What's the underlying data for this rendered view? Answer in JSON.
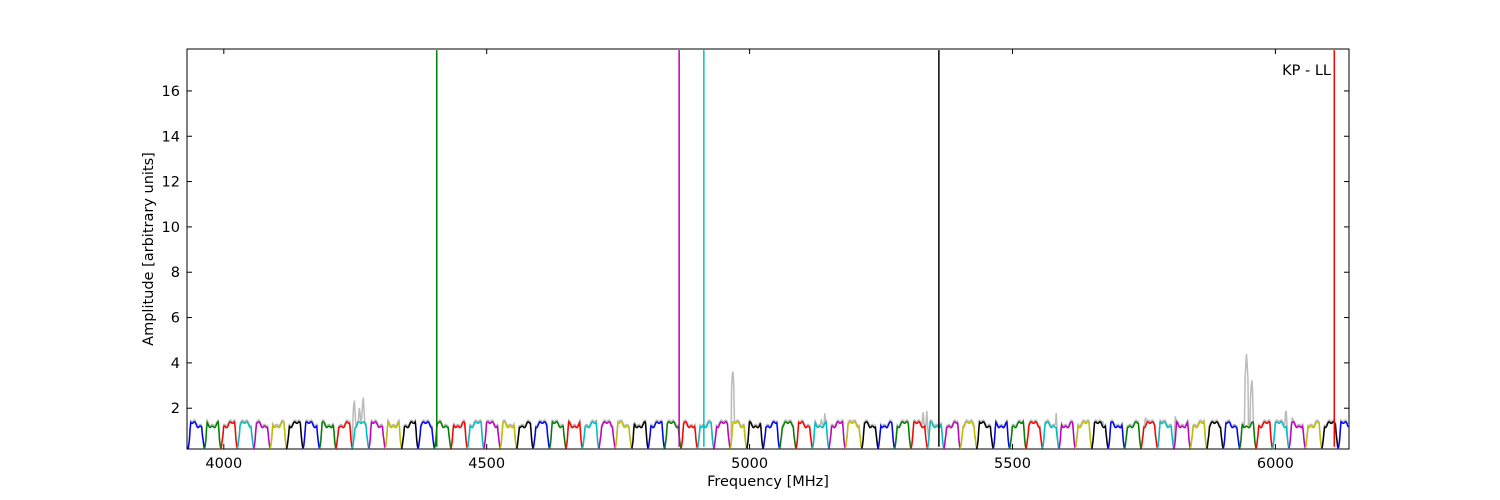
{
  "chart_data": {
    "type": "line",
    "annotation": "KP - LL",
    "xlabel": "Frequency [MHz]",
    "ylabel": "Amplitude [arbitrary units]",
    "xlim": [
      3930,
      6140
    ],
    "ylim": [
      0.2,
      17.85
    ],
    "x_ticks": [
      4000,
      4500,
      5000,
      5500,
      6000
    ],
    "y_ticks": [
      2,
      4,
      6,
      8,
      10,
      12,
      14,
      16
    ],
    "grid": false,
    "legend": "none",
    "channel_width_mhz": 31.25,
    "channel_start_mhz": 3932,
    "channel_colors": [
      "#0000ff",
      "#008000",
      "#ff0000",
      "#00bfbf",
      "#bf00bf",
      "#bfbf00",
      "#000000"
    ],
    "background_series_color": "#bbbbbb",
    "background_peaks": [
      {
        "x": 4248,
        "y": 2.5
      },
      {
        "x": 4258,
        "y": 2.2
      },
      {
        "x": 4265,
        "y": 2.6
      },
      {
        "x": 4968,
        "y": 3.8
      },
      {
        "x": 5137,
        "y": 1.7
      },
      {
        "x": 5143,
        "y": 1.8
      },
      {
        "x": 5330,
        "y": 2.0
      },
      {
        "x": 5337,
        "y": 1.9
      },
      {
        "x": 5583,
        "y": 1.8
      },
      {
        "x": 5672,
        "y": 1.6
      },
      {
        "x": 5753,
        "y": 1.8
      },
      {
        "x": 5810,
        "y": 1.8
      },
      {
        "x": 5945,
        "y": 4.4
      },
      {
        "x": 5955,
        "y": 3.4
      },
      {
        "x": 6020,
        "y": 2.1
      },
      {
        "x": 6032,
        "y": 1.7
      }
    ],
    "spikes": [
      {
        "x": 4405,
        "y": 17.8,
        "color": "#008000"
      },
      {
        "x": 4866,
        "y": 17.8,
        "color": "#bf00bf"
      },
      {
        "x": 4913,
        "y": 17.8,
        "color": "#00bfbf"
      },
      {
        "x": 5360,
        "y": 17.8,
        "color": "#000000"
      },
      {
        "x": 6112,
        "y": 17.8,
        "color": "#ff0000"
      }
    ]
  }
}
